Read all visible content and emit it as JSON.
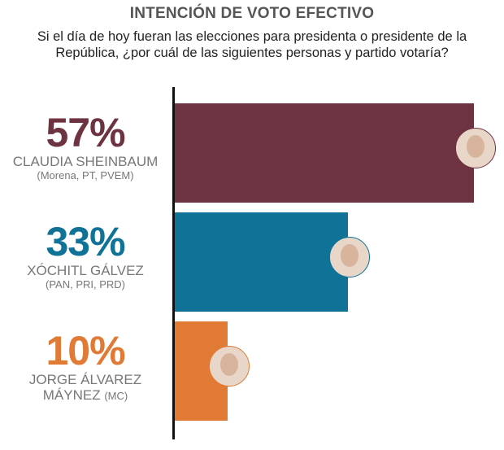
{
  "chart_data": {
    "type": "bar",
    "orientation": "horizontal",
    "title": "INTENCIÓN DE VOTO EFECTIVO",
    "subtitle": "Si el día de hoy fueran las elecciones para presidenta o presidente de la República, ¿por cuál de las siguientes personas y partido votaría?",
    "xlim": [
      0,
      100
    ],
    "grid": false,
    "categories": [
      {
        "pct": "57%",
        "name": "CLAUDIA SHEINBAUM",
        "party": "(Morena, PT, PVEM)",
        "color": "#6e3340",
        "icon": "candidate-photo"
      },
      {
        "pct": "33%",
        "name": "XÓCHITL GÁLVEZ",
        "party": "(PAN, PRI, PRD)",
        "color": "#0f7296",
        "icon": "candidate-photo"
      },
      {
        "pct": "10%",
        "name": "JORGE ÁLVAREZ MÁYNEZ",
        "party": "(MC)",
        "color": "#e07a35",
        "icon": "candidate-photo"
      }
    ],
    "values": [
      57,
      33,
      10
    ]
  }
}
